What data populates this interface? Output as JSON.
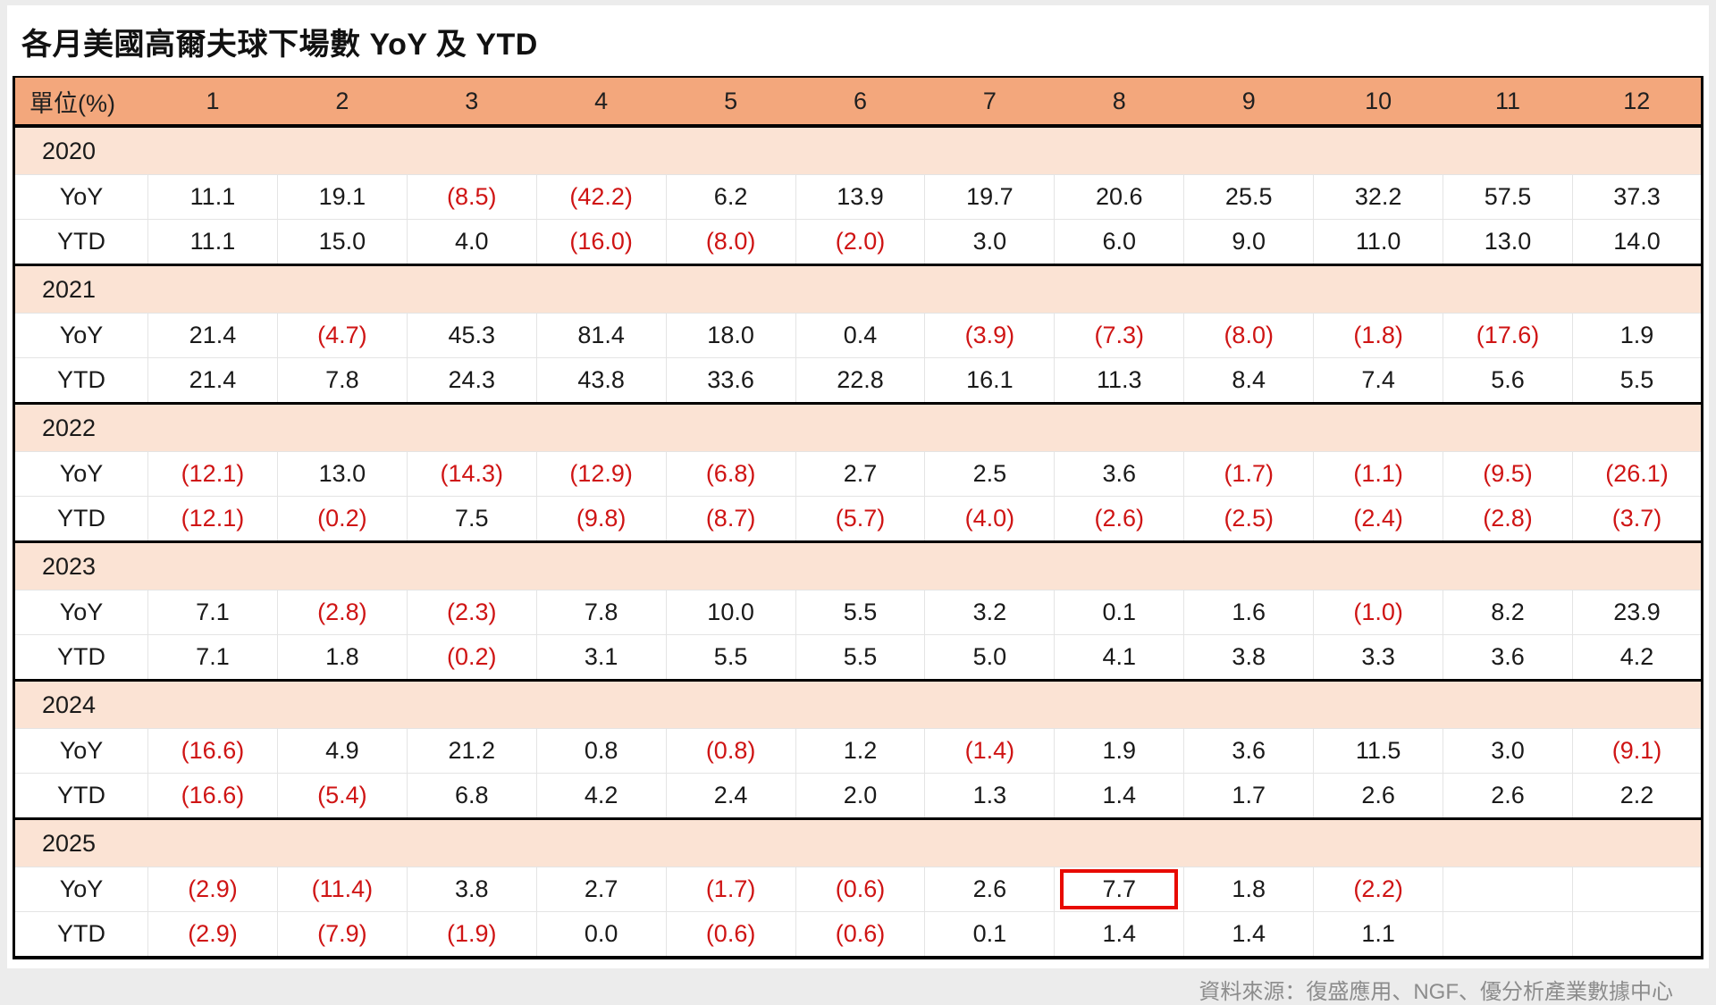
{
  "page": {
    "title": "各月美國高爾夫球下場數 YoY 及 YTD",
    "source": "資料來源：復盛應用、NGF、優分析產業數據中心"
  },
  "chart_data": {
    "type": "table",
    "title": "各月美國高爾夫球下場數 YoY 及 YTD",
    "unit_label": "單位(%)",
    "columns": [
      "1",
      "2",
      "3",
      "4",
      "5",
      "6",
      "7",
      "8",
      "9",
      "10",
      "11",
      "12"
    ],
    "yoy_label": "YoY",
    "ytd_label": "YTD",
    "note": "values in parentheses are negative percentages",
    "years": [
      {
        "year": "2020",
        "yoy": [
          "11.1",
          "19.1",
          "(8.5)",
          "(42.2)",
          "6.2",
          "13.9",
          "19.7",
          "20.6",
          "25.5",
          "32.2",
          "57.5",
          "37.3"
        ],
        "ytd": [
          "11.1",
          "15.0",
          "4.0",
          "(16.0)",
          "(8.0)",
          "(2.0)",
          "3.0",
          "6.0",
          "9.0",
          "11.0",
          "13.0",
          "14.0"
        ]
      },
      {
        "year": "2021",
        "yoy": [
          "21.4",
          "(4.7)",
          "45.3",
          "81.4",
          "18.0",
          "0.4",
          "(3.9)",
          "(7.3)",
          "(8.0)",
          "(1.8)",
          "(17.6)",
          "1.9"
        ],
        "ytd": [
          "21.4",
          "7.8",
          "24.3",
          "43.8",
          "33.6",
          "22.8",
          "16.1",
          "11.3",
          "8.4",
          "7.4",
          "5.6",
          "5.5"
        ]
      },
      {
        "year": "2022",
        "yoy": [
          "(12.1)",
          "13.0",
          "(14.3)",
          "(12.9)",
          "(6.8)",
          "2.7",
          "2.5",
          "3.6",
          "(1.7)",
          "(1.1)",
          "(9.5)",
          "(26.1)"
        ],
        "ytd": [
          "(12.1)",
          "(0.2)",
          "7.5",
          "(9.8)",
          "(8.7)",
          "(5.7)",
          "(4.0)",
          "(2.6)",
          "(2.5)",
          "(2.4)",
          "(2.8)",
          "(3.7)"
        ]
      },
      {
        "year": "2023",
        "yoy": [
          "7.1",
          "(2.8)",
          "(2.3)",
          "7.8",
          "10.0",
          "5.5",
          "3.2",
          "0.1",
          "1.6",
          "(1.0)",
          "8.2",
          "23.9"
        ],
        "ytd": [
          "7.1",
          "1.8",
          "(0.2)",
          "3.1",
          "5.5",
          "5.5",
          "5.0",
          "4.1",
          "3.8",
          "3.3",
          "3.6",
          "4.2"
        ]
      },
      {
        "year": "2024",
        "yoy": [
          "(16.6)",
          "4.9",
          "21.2",
          "0.8",
          "(0.8)",
          "1.2",
          "(1.4)",
          "1.9",
          "3.6",
          "11.5",
          "3.0",
          "(9.1)"
        ],
        "ytd": [
          "(16.6)",
          "(5.4)",
          "6.8",
          "4.2",
          "2.4",
          "2.0",
          "1.3",
          "1.4",
          "1.7",
          "2.6",
          "2.6",
          "2.2"
        ]
      },
      {
        "year": "2025",
        "yoy": [
          "(2.9)",
          "(11.4)",
          "3.8",
          "2.7",
          "(1.7)",
          "(0.6)",
          "2.6",
          "7.7",
          "1.8",
          "(2.2)",
          "",
          ""
        ],
        "ytd": [
          "(2.9)",
          "(7.9)",
          "(1.9)",
          "0.0",
          "(0.6)",
          "(0.6)",
          "0.1",
          "1.4",
          "1.4",
          "1.1",
          "",
          ""
        ]
      }
    ],
    "highlight": {
      "year": "2025",
      "series": "YoY",
      "month": "8",
      "value": "7.7"
    }
  },
  "colors": {
    "header_bg": "#F3A77C",
    "year_bg": "#FBE3D4",
    "negative_red": "#CF1414",
    "highlight_box": "#E80A00",
    "source_text": "#8C8C8C"
  }
}
